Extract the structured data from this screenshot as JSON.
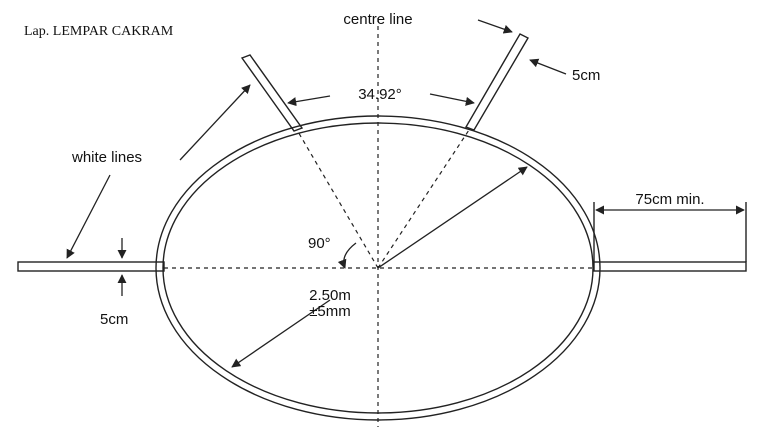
{
  "title": "Lap. LEMPAR CAKRAM",
  "labels": {
    "centre_line": "centre line",
    "sector_angle": "34.92°",
    "line_width_top": "5cm",
    "white_lines": "white lines",
    "extension": "75cm min.",
    "right_angle": "90°",
    "diameter": "2.50m",
    "tolerance": "±5mm",
    "line_width_left": "5cm"
  }
}
